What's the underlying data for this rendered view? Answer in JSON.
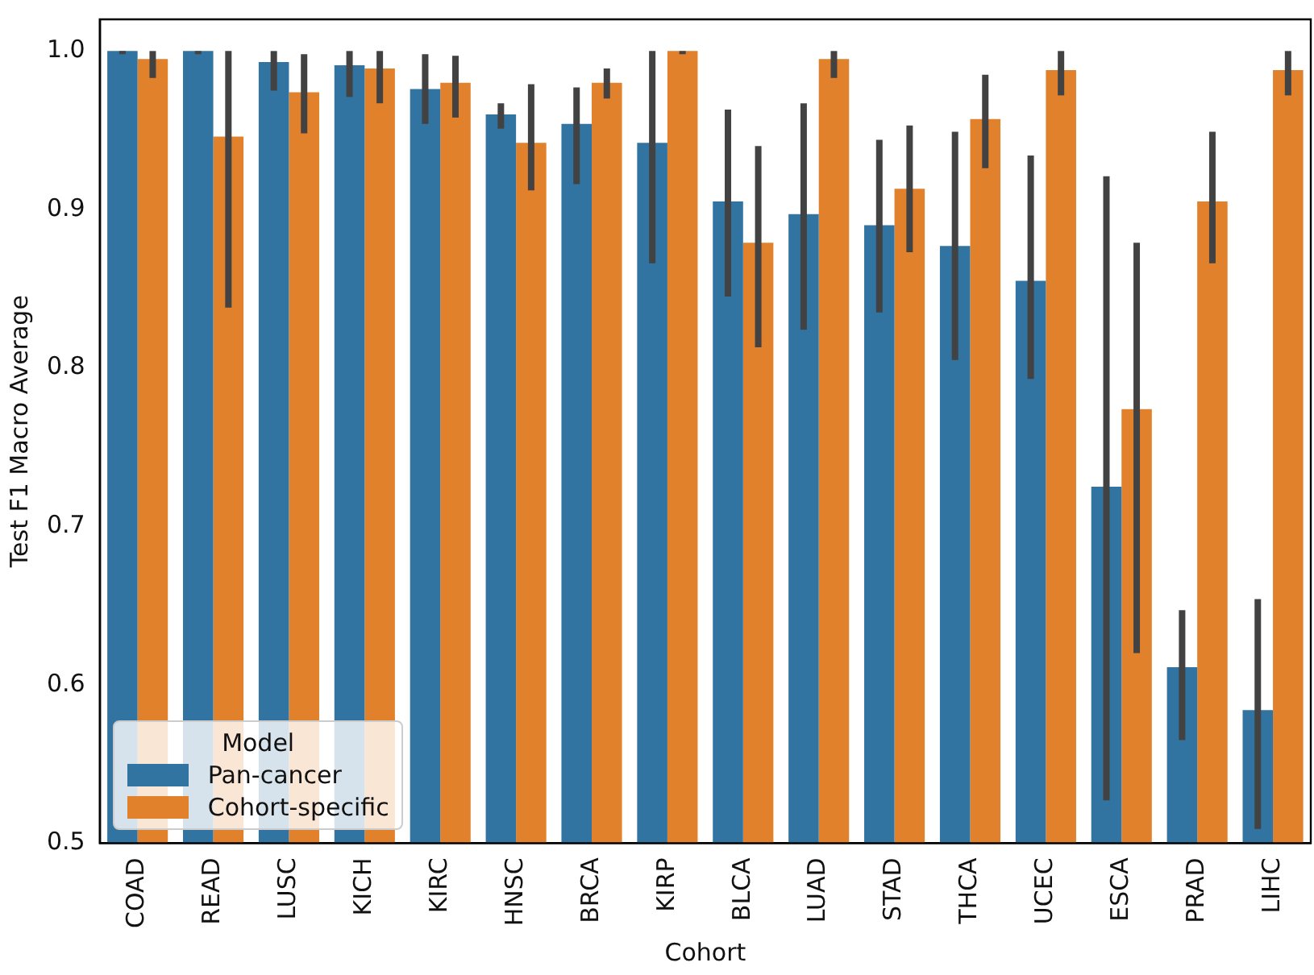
{
  "chart_data": {
    "type": "bar",
    "xlabel": "Cohort",
    "ylabel": "Test F1 Macro Average",
    "legend_title": "Model",
    "legend": "bottom left",
    "grid": false,
    "categories": [
      "COAD",
      "READ",
      "LUSC",
      "KICH",
      "KIRC",
      "HNSC",
      "BRCA",
      "KIRP",
      "BLCA",
      "LUAD",
      "STAD",
      "THCA",
      "UCEC",
      "ESCA",
      "PRAD",
      "LIHC"
    ],
    "ylim": [
      0.5,
      1.02
    ],
    "yticks": [
      {
        "value": 0.5,
        "label": "0.5"
      },
      {
        "value": 0.6,
        "label": "0.6"
      },
      {
        "value": 0.7,
        "label": "0.7"
      },
      {
        "value": 0.8,
        "label": "0.8"
      },
      {
        "value": 0.9,
        "label": "0.9"
      },
      {
        "value": 1.0,
        "label": "1.0"
      }
    ],
    "series": [
      {
        "name": "Pan-cancer",
        "color": "#3274a1",
        "values": [
          1.0,
          1.0,
          0.993,
          0.991,
          0.976,
          0.96,
          0.954,
          0.942,
          0.905,
          0.897,
          0.89,
          0.877,
          0.855,
          0.725,
          0.611,
          0.584
        ],
        "errors": [
          [
            0.998,
            1.0
          ],
          [
            0.998,
            1.0
          ],
          [
            0.975,
            1.0
          ],
          [
            0.971,
            1.0
          ],
          [
            0.954,
            0.998
          ],
          [
            0.951,
            0.967
          ],
          [
            0.916,
            0.977
          ],
          [
            0.866,
            1.0
          ],
          [
            0.845,
            0.963
          ],
          [
            0.824,
            0.967
          ],
          [
            0.835,
            0.944
          ],
          [
            0.805,
            0.949
          ],
          [
            0.793,
            0.934
          ],
          [
            0.527,
            0.921
          ],
          [
            0.565,
            0.647
          ],
          [
            0.509,
            0.654
          ]
        ]
      },
      {
        "name": "Cohort-specific",
        "color": "#e1812c",
        "values": [
          0.995,
          0.946,
          0.974,
          0.989,
          0.98,
          0.942,
          0.98,
          1.0,
          0.879,
          0.995,
          0.913,
          0.957,
          0.988,
          0.774,
          0.905,
          0.988
        ],
        "errors": [
          [
            0.983,
            1.0
          ],
          [
            0.838,
            1.0
          ],
          [
            0.948,
            0.998
          ],
          [
            0.967,
            1.0
          ],
          [
            0.958,
            0.997
          ],
          [
            0.912,
            0.979
          ],
          [
            0.97,
            0.989
          ],
          [
            0.998,
            1.0
          ],
          [
            0.813,
            0.94
          ],
          [
            0.983,
            1.0
          ],
          [
            0.873,
            0.953
          ],
          [
            0.926,
            0.985
          ],
          [
            0.972,
            1.0
          ],
          [
            0.62,
            0.879
          ],
          [
            0.866,
            0.949
          ],
          [
            0.972,
            1.0
          ]
        ]
      }
    ]
  }
}
